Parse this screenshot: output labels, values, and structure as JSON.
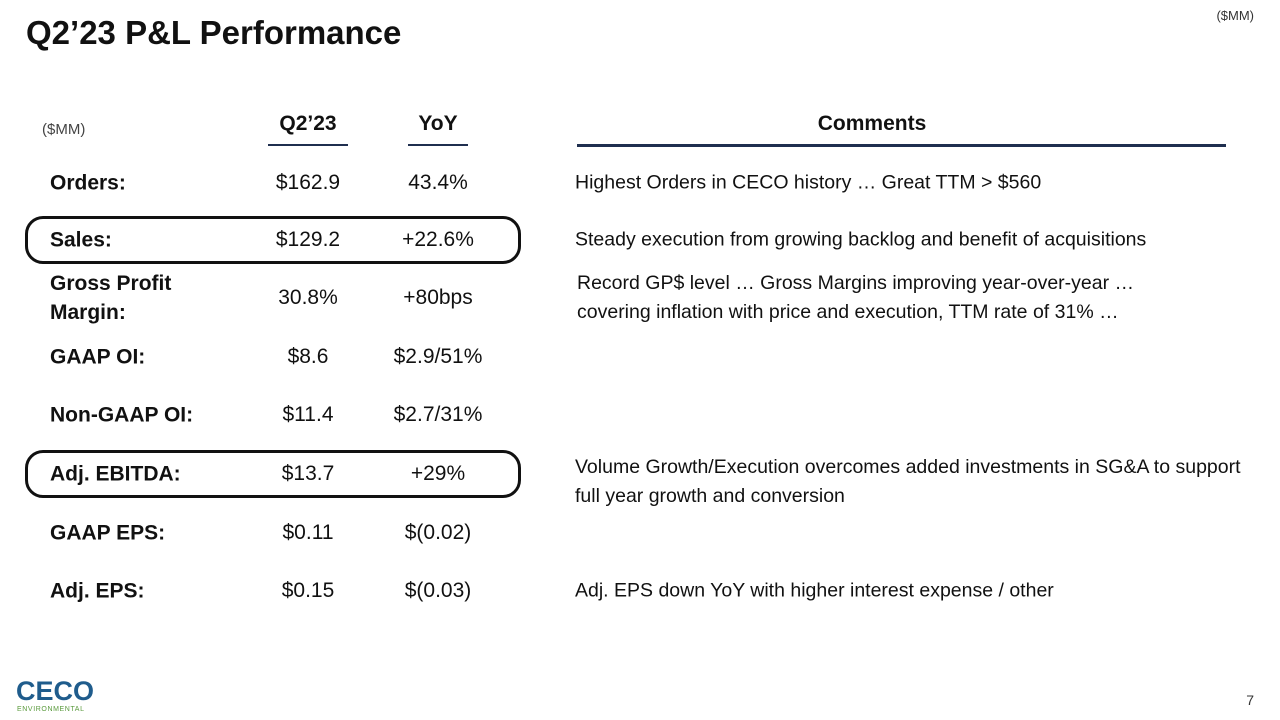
{
  "header": {
    "title": "Q2’23 P&L Performance",
    "unit": "($MM)"
  },
  "table": {
    "unit": "($MM)",
    "columns": [
      "Q2’23",
      "YoY",
      "Comments"
    ],
    "rows": [
      {
        "label": "Orders:",
        "q2": "$162.9",
        "yoy": "43.4%",
        "comment": "Highest Orders in CECO history … Great TTM > $560"
      },
      {
        "label": "Sales:",
        "q2": "$129.2",
        "yoy": "+22.6%",
        "comment": "Steady execution from growing backlog and benefit of acquisitions"
      },
      {
        "label": "Gross Profit Margin:",
        "q2": "30.8%",
        "yoy": "+80bps",
        "comment": "Record GP$ level … Gross Margins improving year-over-year … covering inflation with price and execution, TTM rate of 31% …"
      },
      {
        "label": "GAAP OI:",
        "q2": "$8.6",
        "yoy": "$2.9/51%"
      },
      {
        "label": "Non-GAAP OI:",
        "q2": "$11.4",
        "yoy": "$2.7/31%"
      },
      {
        "label": "Adj. EBITDA:",
        "q2": "$13.7",
        "yoy": "+29%",
        "comment": "Volume Growth/Execution overcomes added investments in SG&A to support full year growth and conversion"
      },
      {
        "label": "GAAP EPS:",
        "q2": "$0.11",
        "yoy": "$(0.02)"
      },
      {
        "label": "Adj. EPS:",
        "q2": "$0.15",
        "yoy": "$(0.03)",
        "comment": "Adj. EPS down YoY with higher interest expense / other"
      }
    ]
  },
  "footer": {
    "logo": "CECO",
    "logo_tagline": "ENVIRONMENTAL",
    "page": "7"
  }
}
